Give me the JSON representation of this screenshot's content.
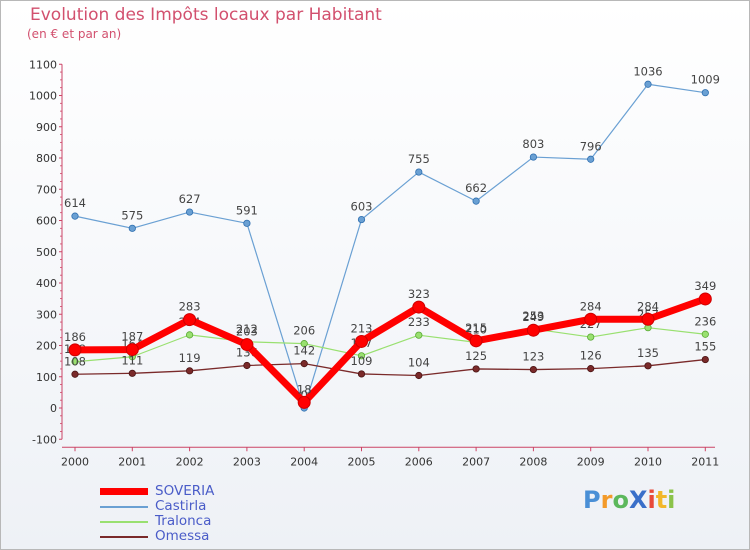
{
  "chart_data": {
    "type": "line",
    "title": "Evolution des Impôts locaux par Habitant",
    "subtitle": "(en € et par an)",
    "xlabel": "",
    "ylabel": "",
    "ylim": [
      -100,
      1100
    ],
    "yticks": [
      -100,
      0,
      100,
      200,
      300,
      400,
      500,
      600,
      700,
      800,
      900,
      1000,
      1100
    ],
    "categories": [
      "2000",
      "2001",
      "2002",
      "2003",
      "2004",
      "2005",
      "2006",
      "2007",
      "2008",
      "2009",
      "2010",
      "2011"
    ],
    "series": [
      {
        "name": "SOVERIA",
        "color": "#ff0000",
        "values": [
          186,
          187,
          283,
          203,
          18,
          213,
          323,
          215,
          249,
          284,
          284,
          349
        ]
      },
      {
        "name": "Castirla",
        "color": "#6aa0d3",
        "values": [
          614,
          575,
          627,
          591,
          0,
          603,
          755,
          662,
          803,
          796,
          1036,
          1009
        ]
      },
      {
        "name": "Tralonca",
        "color": "#99e070",
        "values": [
          148,
          164,
          234,
          212,
          206,
          167,
          233,
          210,
          253,
          227,
          257,
          236
        ]
      },
      {
        "name": "Omessa",
        "color": "#7a2a2a",
        "values": [
          108,
          111,
          119,
          136,
          142,
          109,
          104,
          125,
          123,
          126,
          135,
          155
        ]
      }
    ],
    "legend": "bottom-left",
    "grid": false
  },
  "logo": {
    "text": "ProXiti",
    "letters": [
      {
        "ch": "P",
        "color": "#4a8fd6"
      },
      {
        "ch": "r",
        "color": "#f39a2a"
      },
      {
        "ch": "o",
        "color": "#5cb85c"
      },
      {
        "ch": "X",
        "color": "#3a6fc9"
      },
      {
        "ch": "i",
        "color": "#e84a3a"
      },
      {
        "ch": "t",
        "color": "#f2b72a"
      },
      {
        "ch": "i",
        "color": "#8bc34a"
      }
    ]
  }
}
